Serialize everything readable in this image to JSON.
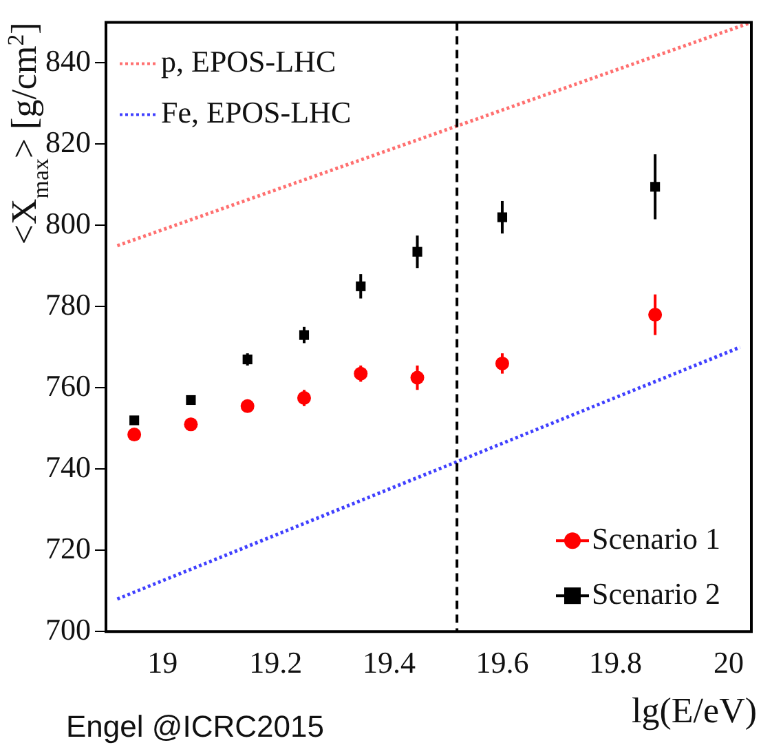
{
  "chart_data": {
    "type": "scatter",
    "xlabel": "lg(E/eV)",
    "ylabel": "<X$_{max}$> [g/cm$^{2}$]",
    "xlim": [
      18.9,
      20.04
    ],
    "xticks": [
      19,
      19.2,
      19.4,
      19.6,
      19.8,
      20
    ],
    "ylim": [
      700,
      850
    ],
    "yticks": [
      700,
      720,
      740,
      760,
      780,
      800,
      820,
      840
    ],
    "grid": false,
    "legend": "bottom right",
    "ref_lines": [
      {
        "axis": "x",
        "value": 19.52,
        "color": "#000000",
        "line_style": "dashed"
      }
    ],
    "annotations": [
      "Engel @ICRC2015"
    ],
    "series": [
      {
        "name": "p, EPOS-LHC",
        "type": "line",
        "color": "#ff7070",
        "line_style": "dotted",
        "marker": "none",
        "x": [
          18.92,
          20.04
        ],
        "values": [
          795,
          850
        ]
      },
      {
        "name": "Fe, EPOS-LHC",
        "type": "line",
        "color": "#4040ff",
        "line_style": "dotted",
        "marker": "none",
        "x": [
          18.92,
          20.02
        ],
        "values": [
          708,
          770
        ]
      },
      {
        "name": "Scenario 1",
        "type": "scatter",
        "color": "#ff0000",
        "marker": "circle",
        "x": [
          18.95,
          19.05,
          19.15,
          19.25,
          19.35,
          19.45,
          19.6,
          19.87
        ],
        "values": [
          748.5,
          751,
          755.5,
          757.5,
          763.5,
          762.5,
          766,
          778
        ],
        "errors": [
          1,
          1,
          1,
          2,
          2,
          3,
          2.5,
          5
        ]
      },
      {
        "name": "Scenario 2",
        "type": "scatter",
        "color": "#000000",
        "marker": "square",
        "x": [
          18.95,
          19.05,
          19.15,
          19.25,
          19.35,
          19.45,
          19.6,
          19.87
        ],
        "values": [
          752,
          757,
          767,
          773,
          785,
          793.5,
          802,
          809.5
        ],
        "errors": [
          1,
          1,
          1.5,
          2,
          3,
          4,
          4,
          8
        ]
      }
    ]
  }
}
